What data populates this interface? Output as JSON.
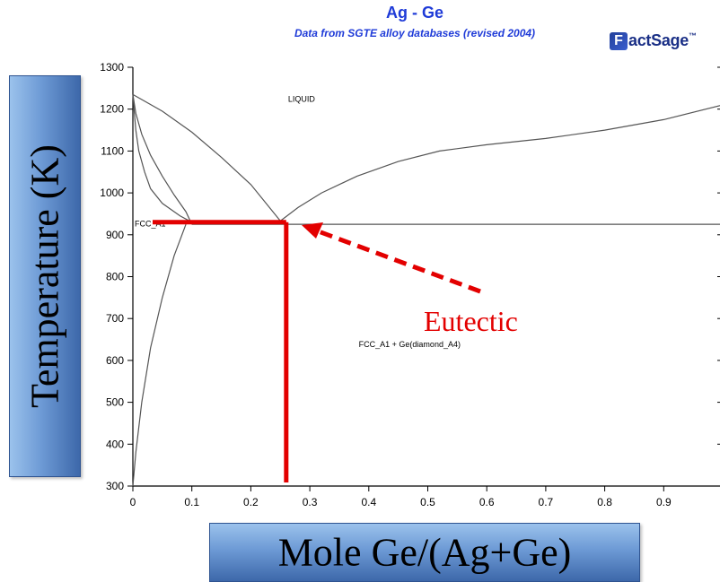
{
  "chart_data": {
    "type": "line",
    "title": "Ag - Ge",
    "subtitle": "Data from SGTE alloy databases (revised 2004)",
    "brand": {
      "mark": "F",
      "text": "actSage",
      "sup": "™"
    },
    "xlabel": "Mole Ge/(Ag+Ge)",
    "ylabel": "Temperature (K)",
    "xlim": [
      0,
      1
    ],
    "ylim": [
      300,
      1300
    ],
    "x_ticks": [
      "0",
      "0.1",
      "0.2",
      "0.3",
      "0.4",
      "0.5",
      "0.6",
      "0.7",
      "0.8",
      "0.9"
    ],
    "x_tick_values": [
      0,
      0.1,
      0.2,
      0.3,
      0.4,
      0.5,
      0.6,
      0.7,
      0.8,
      0.9
    ],
    "y_ticks": [
      "300",
      "400",
      "500",
      "600",
      "700",
      "800",
      "900",
      "1000",
      "1100",
      "1200",
      "1300"
    ],
    "y_tick_values": [
      300,
      400,
      500,
      600,
      700,
      800,
      900,
      1000,
      1100,
      1200,
      1300
    ],
    "grid": false,
    "series": [
      {
        "points": [
          [
            0,
            1235
          ],
          [
            0.05,
            1195
          ],
          [
            0.1,
            1145
          ],
          [
            0.15,
            1085
          ],
          [
            0.2,
            1020
          ],
          [
            0.25,
            933
          ]
        ]
      },
      {
        "points": [
          [
            0.25,
            933
          ],
          [
            0.28,
            965
          ],
          [
            0.32,
            1000
          ],
          [
            0.38,
            1040
          ],
          [
            0.45,
            1075
          ],
          [
            0.52,
            1100
          ],
          [
            0.6,
            1115
          ],
          [
            0.7,
            1130
          ],
          [
            0.8,
            1150
          ],
          [
            0.9,
            1175
          ],
          [
            1.0,
            1210
          ]
        ]
      },
      {
        "points": [
          [
            0,
            1235
          ],
          [
            0.005,
            1190
          ],
          [
            0.015,
            1140
          ],
          [
            0.03,
            1090
          ],
          [
            0.05,
            1040
          ],
          [
            0.07,
            995
          ],
          [
            0.09,
            955
          ],
          [
            0.1,
            925
          ]
        ]
      },
      {
        "points": [
          [
            0,
            1235
          ],
          [
            0.002,
            1200
          ],
          [
            0.005,
            1150
          ],
          [
            0.01,
            1100
          ],
          [
            0.02,
            1050
          ],
          [
            0.03,
            1010
          ],
          [
            0.05,
            975
          ],
          [
            0.08,
            945
          ],
          [
            0.1,
            930
          ]
        ]
      },
      {
        "points": [
          [
            0.09,
            925
          ],
          [
            0.07,
            850
          ],
          [
            0.05,
            750
          ],
          [
            0.03,
            630
          ],
          [
            0.015,
            500
          ],
          [
            0.005,
            380
          ],
          [
            0,
            300
          ]
        ]
      },
      {
        "points": [
          [
            0.1,
            925
          ],
          [
            1.0,
            925
          ]
        ]
      }
    ],
    "region_labels": [
      {
        "text": "LIQUID",
        "x": 0.26,
        "y": 1218
      },
      {
        "text": "FCC_A1",
        "x": 0.0,
        "y": 920
      },
      {
        "text": "FCC_A1 + Ge(diamond_A4)",
        "x": 0.38,
        "y": 632
      }
    ],
    "annotation": {
      "text": "Eutectic",
      "eutectic_point": {
        "x": 0.26,
        "y": 930
      },
      "color": "#e30000"
    }
  }
}
